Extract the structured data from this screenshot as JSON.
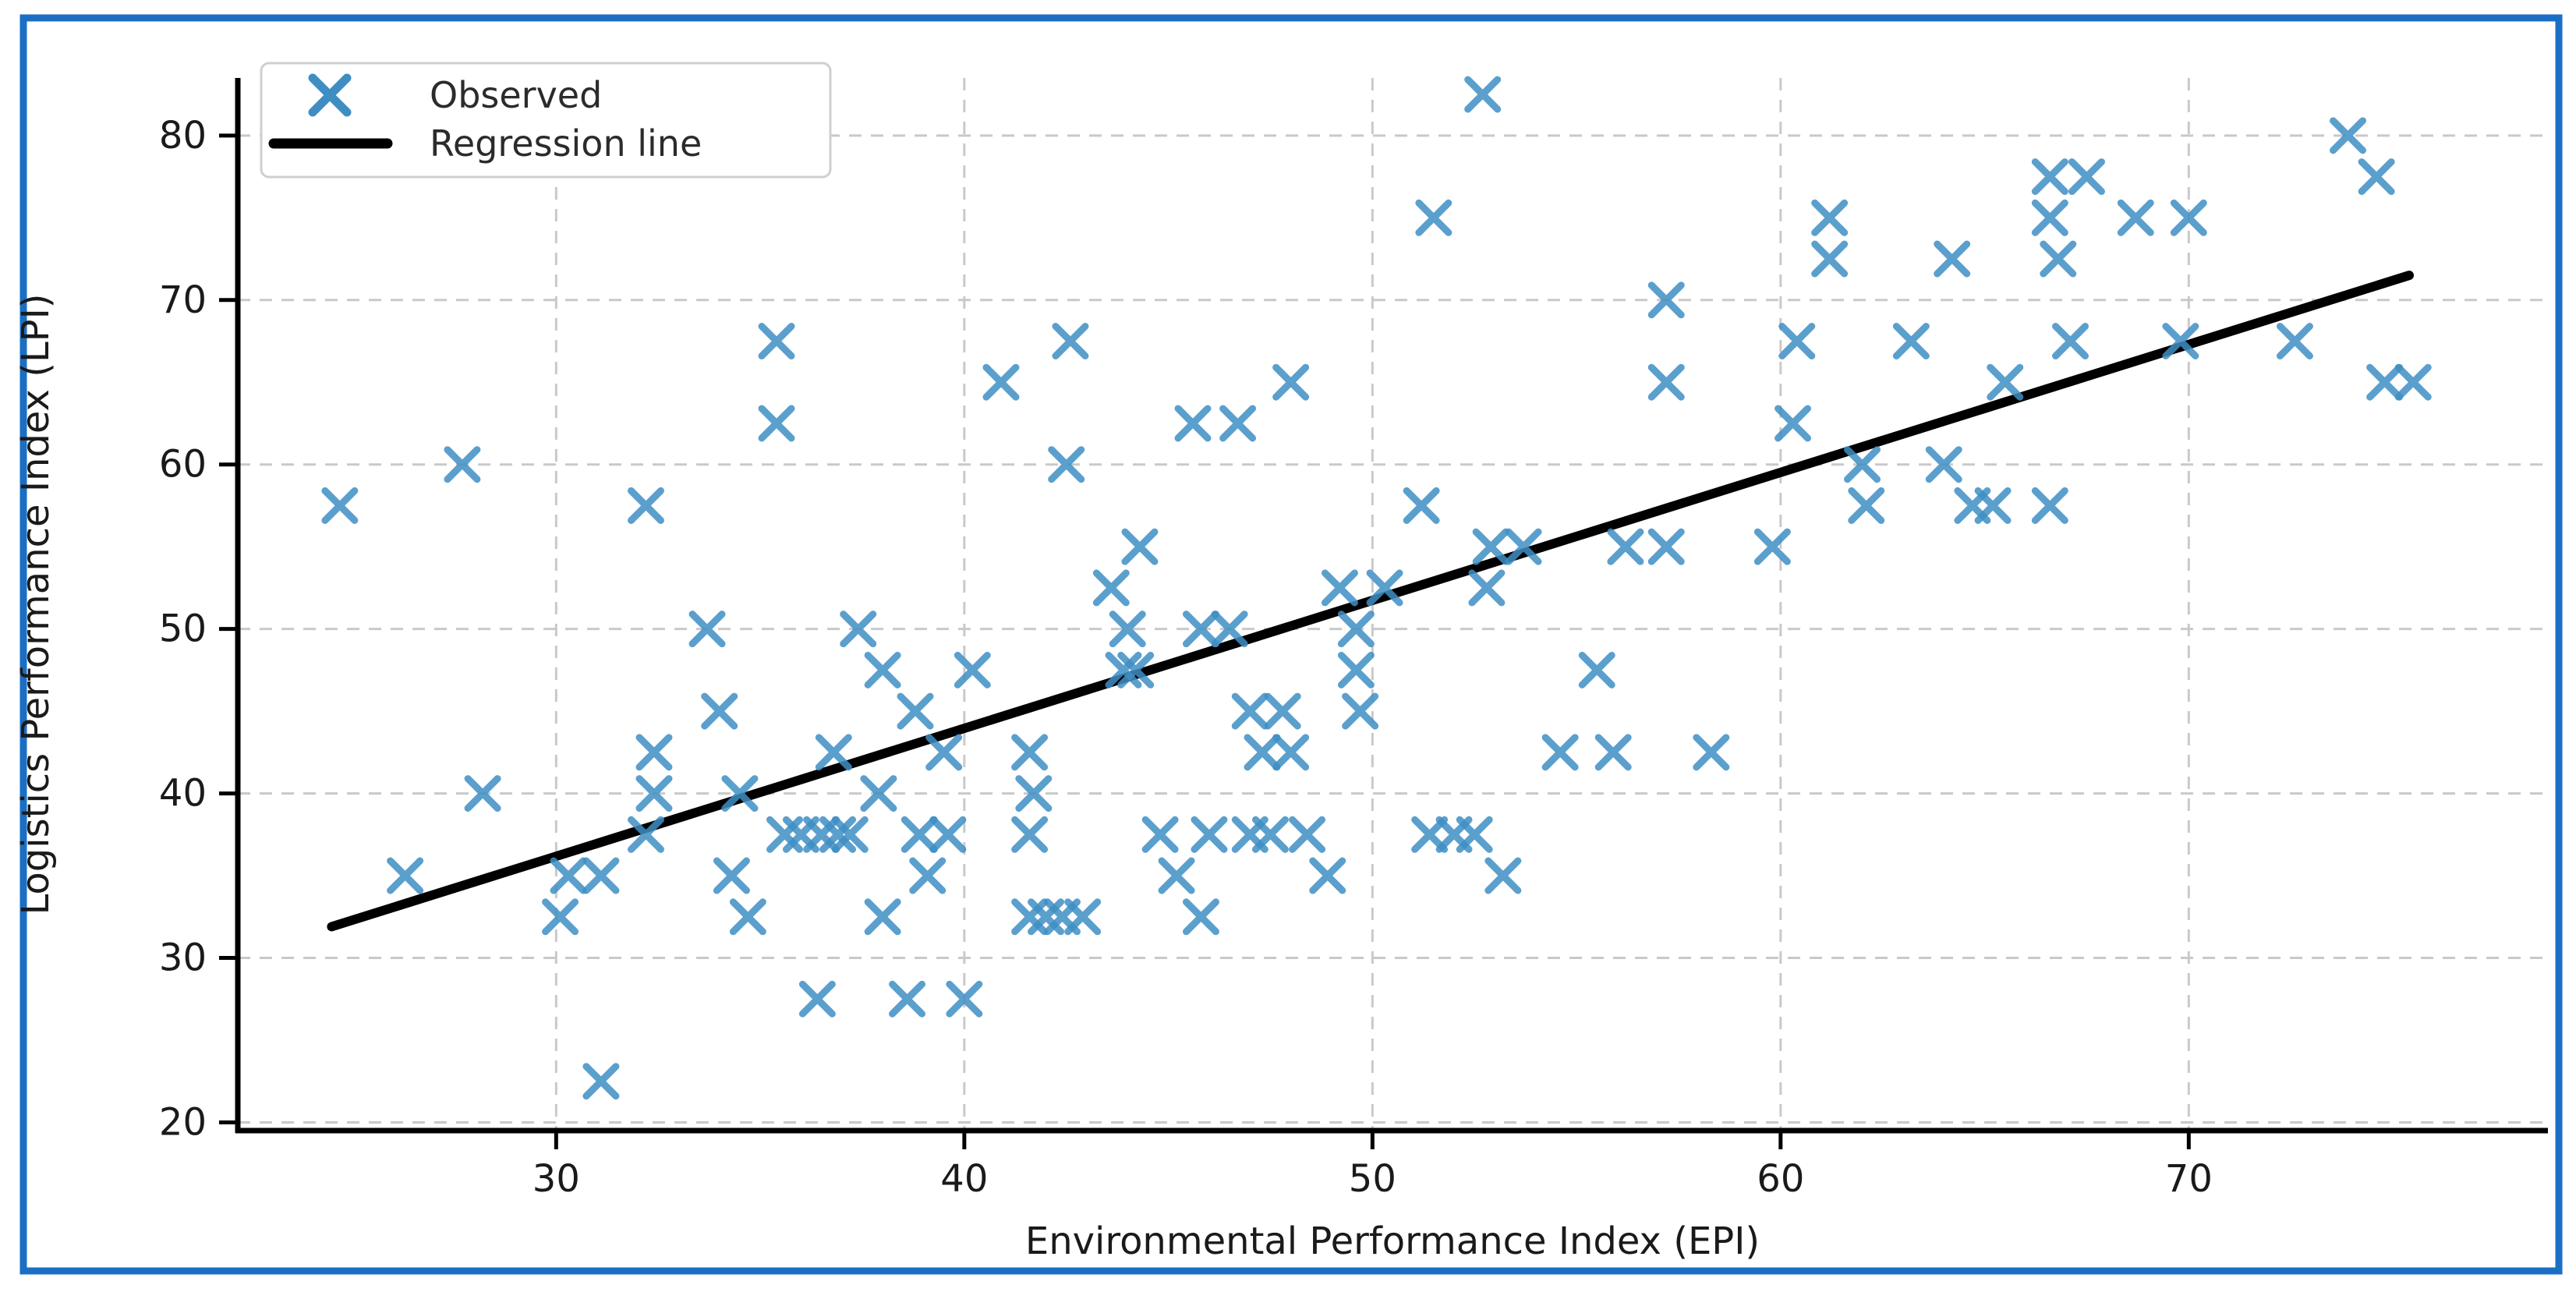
{
  "chart_data": {
    "type": "scatter",
    "title": "",
    "xlabel": "Environmental Performance Index (EPI)",
    "ylabel": "Logistics Performance Index (LPI)",
    "xlim": [
      22.2,
      78.8
    ],
    "ylim": [
      19.5,
      83.5
    ],
    "x_ticks": [
      30,
      40,
      50,
      60,
      70
    ],
    "y_ticks": [
      20,
      30,
      40,
      50,
      60,
      70,
      80
    ],
    "grid": true,
    "legend_position": "upper left",
    "legend": {
      "observed_label": "Observed",
      "regression_label": "Regression line"
    },
    "series": [
      {
        "name": "Observed",
        "marker": "x",
        "color": "#3E8EC4",
        "points": [
          [
            24.7,
            57.5
          ],
          [
            32.2,
            57.5
          ],
          [
            51.2,
            57.5
          ],
          [
            62.1,
            57.5
          ],
          [
            64.7,
            57.5
          ],
          [
            65.2,
            57.5
          ],
          [
            66.6,
            57.5
          ],
          [
            27.7,
            60
          ],
          [
            42.5,
            60
          ],
          [
            62.0,
            60
          ],
          [
            64.0,
            60
          ],
          [
            35.4,
            62.5
          ],
          [
            45.6,
            62.5
          ],
          [
            46.7,
            62.5
          ],
          [
            60.3,
            62.5
          ],
          [
            40.9,
            65
          ],
          [
            48.0,
            65
          ],
          [
            57.2,
            65
          ],
          [
            65.5,
            65
          ],
          [
            74.8,
            65
          ],
          [
            75.5,
            65
          ],
          [
            35.4,
            67.5
          ],
          [
            42.6,
            67.5
          ],
          [
            60.4,
            67.5
          ],
          [
            63.2,
            67.5
          ],
          [
            67.1,
            67.5
          ],
          [
            69.8,
            67.5
          ],
          [
            72.6,
            67.5
          ],
          [
            57.2,
            70
          ],
          [
            61.2,
            72.5
          ],
          [
            64.2,
            72.5
          ],
          [
            66.8,
            72.5
          ],
          [
            51.5,
            75
          ],
          [
            61.2,
            75
          ],
          [
            66.6,
            75
          ],
          [
            68.7,
            75
          ],
          [
            70.0,
            75
          ],
          [
            66.6,
            77.5
          ],
          [
            67.5,
            77.5
          ],
          [
            74.6,
            77.5
          ],
          [
            73.9,
            80
          ],
          [
            52.7,
            82.5
          ],
          [
            44.3,
            55
          ],
          [
            52.9,
            55
          ],
          [
            53.7,
            55
          ],
          [
            56.2,
            55
          ],
          [
            57.2,
            55
          ],
          [
            59.8,
            55
          ],
          [
            43.6,
            52.5
          ],
          [
            49.2,
            52.5
          ],
          [
            50.3,
            52.5
          ],
          [
            52.8,
            52.5
          ],
          [
            33.7,
            50
          ],
          [
            37.4,
            50
          ],
          [
            44.0,
            50
          ],
          [
            45.8,
            50
          ],
          [
            46.5,
            50
          ],
          [
            49.6,
            50
          ],
          [
            38.0,
            47.5
          ],
          [
            40.2,
            47.5
          ],
          [
            43.9,
            47.5
          ],
          [
            44.2,
            47.5
          ],
          [
            49.6,
            47.5
          ],
          [
            55.5,
            47.5
          ],
          [
            34.0,
            45
          ],
          [
            38.8,
            45
          ],
          [
            47.0,
            45
          ],
          [
            47.8,
            45
          ],
          [
            49.7,
            45
          ],
          [
            32.4,
            42.5
          ],
          [
            36.8,
            42.5
          ],
          [
            39.5,
            42.5
          ],
          [
            41.6,
            42.5
          ],
          [
            47.3,
            42.5
          ],
          [
            48.0,
            42.5
          ],
          [
            54.6,
            42.5
          ],
          [
            55.9,
            42.5
          ],
          [
            58.3,
            42.5
          ],
          [
            28.2,
            40
          ],
          [
            32.4,
            40
          ],
          [
            34.5,
            40
          ],
          [
            37.9,
            40
          ],
          [
            41.7,
            40
          ],
          [
            32.2,
            37.5
          ],
          [
            35.6,
            37.5
          ],
          [
            36.0,
            37.5
          ],
          [
            36.5,
            37.5
          ],
          [
            36.9,
            37.5
          ],
          [
            37.2,
            37.5
          ],
          [
            38.9,
            37.5
          ],
          [
            39.6,
            37.5
          ],
          [
            41.6,
            37.5
          ],
          [
            44.8,
            37.5
          ],
          [
            46.0,
            37.5
          ],
          [
            47.0,
            37.5
          ],
          [
            47.5,
            37.5
          ],
          [
            48.4,
            37.5
          ],
          [
            51.4,
            37.5
          ],
          [
            52.0,
            37.5
          ],
          [
            52.5,
            37.5
          ],
          [
            26.3,
            35
          ],
          [
            30.3,
            35
          ],
          [
            31.1,
            35
          ],
          [
            34.3,
            35
          ],
          [
            39.1,
            35
          ],
          [
            45.2,
            35
          ],
          [
            48.9,
            35
          ],
          [
            53.2,
            35
          ],
          [
            30.1,
            32.5
          ],
          [
            34.7,
            32.5
          ],
          [
            38.0,
            32.5
          ],
          [
            41.6,
            32.5
          ],
          [
            42.0,
            32.5
          ],
          [
            42.4,
            32.5
          ],
          [
            42.9,
            32.5
          ],
          [
            45.8,
            32.5
          ],
          [
            36.4,
            27.5
          ],
          [
            38.6,
            27.5
          ],
          [
            40.0,
            27.5
          ],
          [
            31.1,
            22.5
          ]
        ]
      },
      {
        "name": "Regression line",
        "type": "line",
        "color": "#000000",
        "x": [
          24.5,
          75.4
        ],
        "y": [
          31.9,
          71.5
        ]
      }
    ],
    "colors": {
      "marker": "#3E8EC4",
      "regression": "#000000",
      "grid": "#c9c9c9",
      "spine": "#000000",
      "tick_label": "#1a1a1a",
      "legend_border": "#cfcfcf",
      "outer_border": "#1A6FC4",
      "background": "#ffffff"
    }
  }
}
